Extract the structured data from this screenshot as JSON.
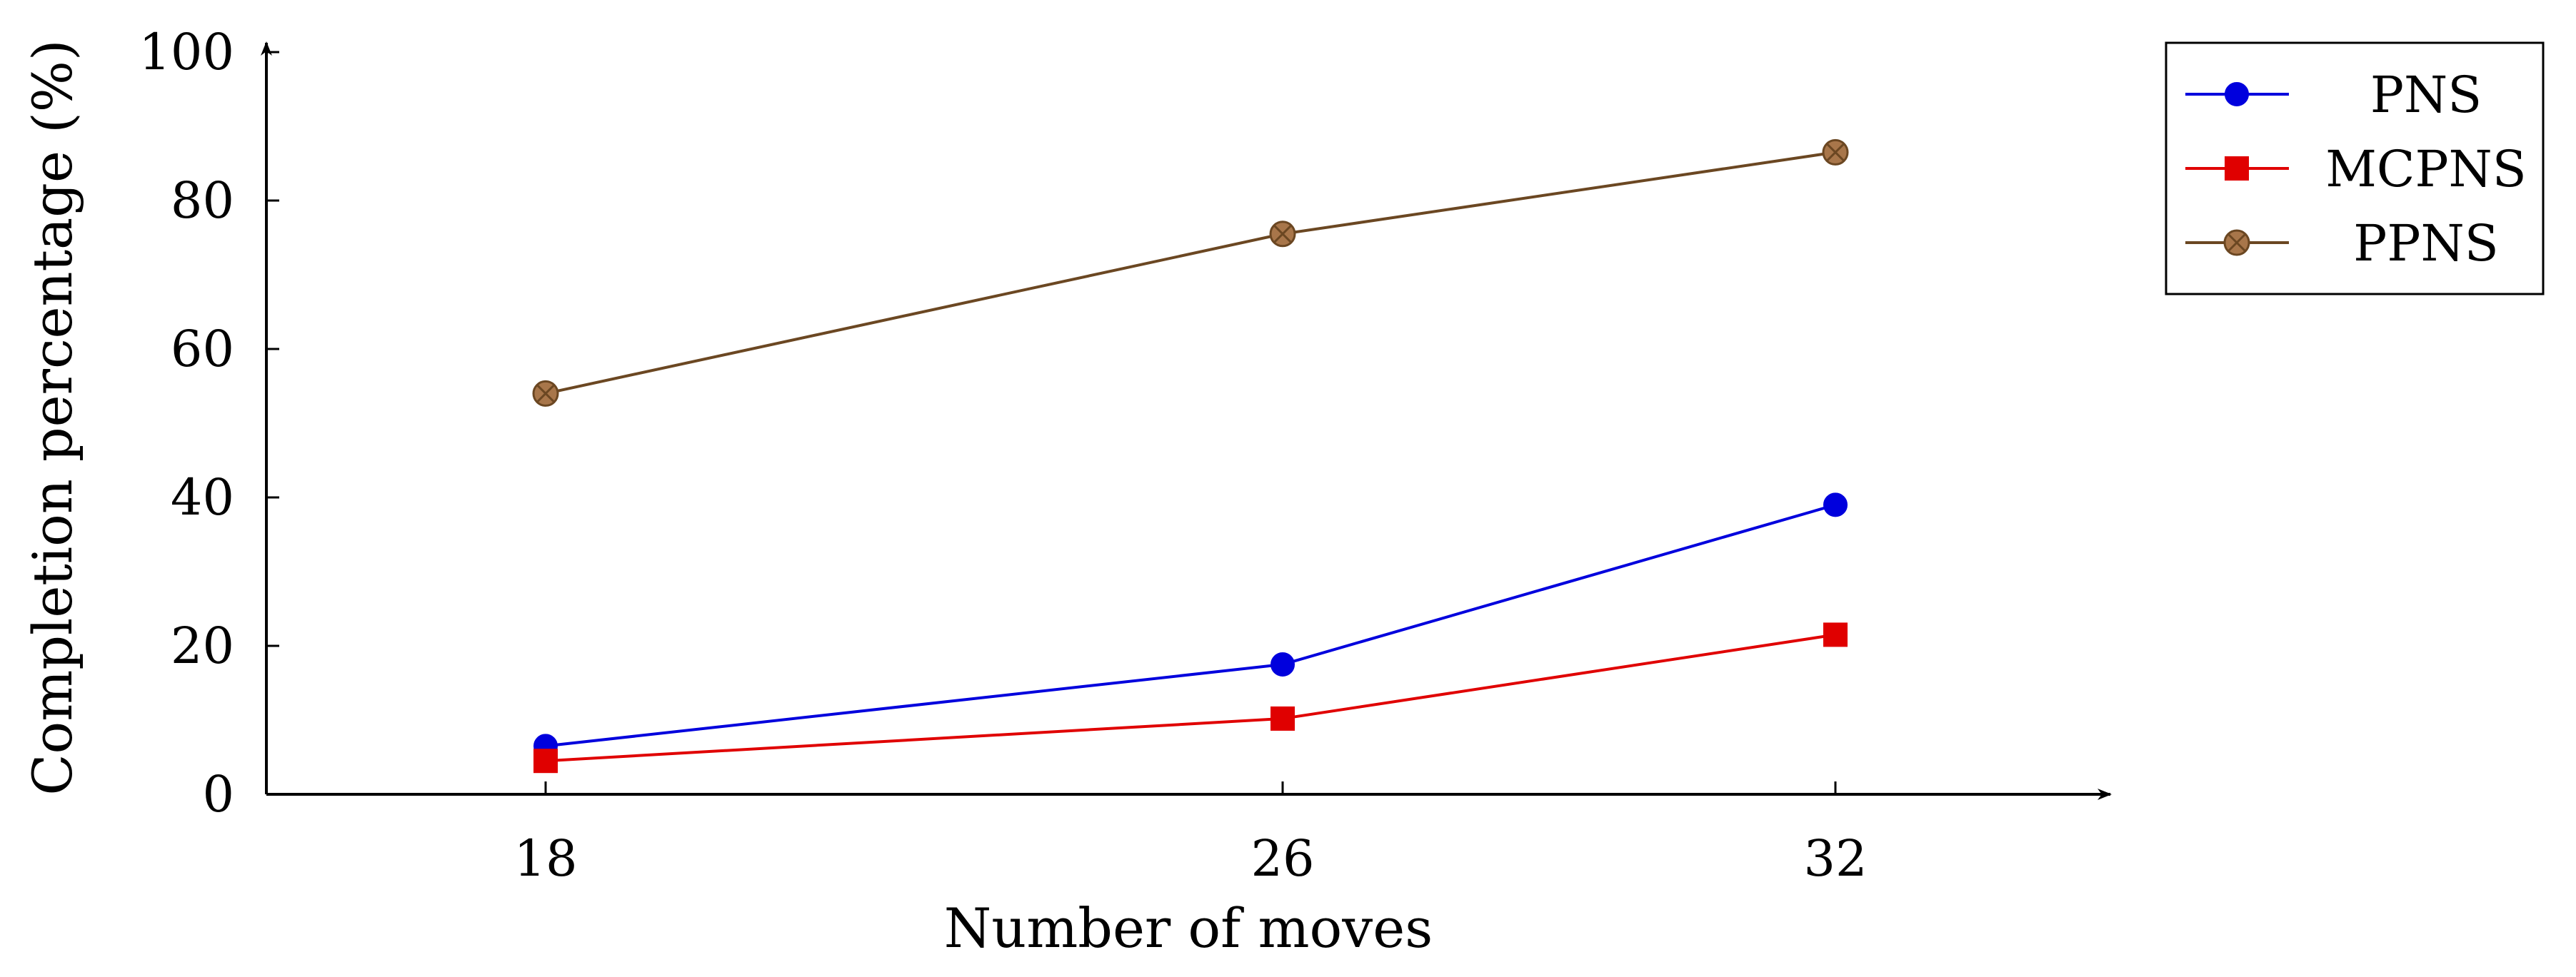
{
  "chart_data": {
    "type": "line",
    "title": "",
    "xlabel": "Number of moves",
    "ylabel": "Completion percentage (%)",
    "categories": [
      "18",
      "26",
      "32"
    ],
    "x": [
      18,
      26,
      32
    ],
    "ylim": [
      0,
      100
    ],
    "yticks": [
      "0",
      "20",
      "40",
      "60",
      "80",
      "100"
    ],
    "grid": false,
    "legend_position": "top-right",
    "series": [
      {
        "name": "PNS",
        "values": [
          6.5,
          17.5,
          39.0
        ],
        "color": "#0000dd",
        "marker": "circle"
      },
      {
        "name": "MCPNS",
        "values": [
          4.5,
          10.2,
          21.5
        ],
        "color": "#e00000",
        "marker": "square"
      },
      {
        "name": "PPNS",
        "values": [
          54.0,
          75.5,
          86.5
        ],
        "color": "#6b4722",
        "marker": "otimes"
      }
    ]
  }
}
